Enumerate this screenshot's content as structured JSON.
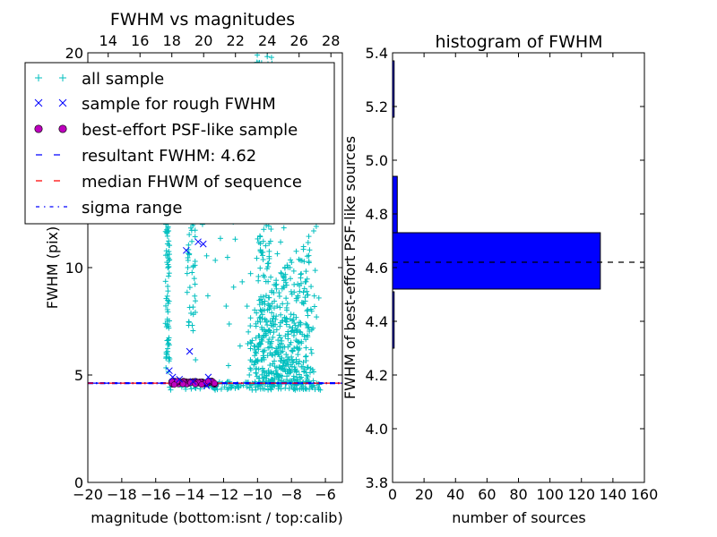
{
  "chart_data": [
    {
      "type": "scatter",
      "title": "FWHM vs magnitudes",
      "xlabel": "magnitude (bottom:isnt / top:calib)",
      "ylabel": "FWHM (pix)",
      "xlim": [
        -20,
        -5
      ],
      "ylim": [
        0,
        20
      ],
      "x_ticks": [
        -20,
        -18,
        -16,
        -14,
        -12,
        -10,
        -8,
        -6
      ],
      "x_tick_labels": [
        "−20",
        "−18",
        "−16",
        "−14",
        "−12",
        "−10",
        "−8",
        "−6"
      ],
      "y_ticks": [
        0,
        5,
        10,
        20
      ],
      "y_tick_labels": [
        "0",
        "5",
        "10",
        "20"
      ],
      "top_axis": {
        "xlim": [
          12.72,
          28.72
        ],
        "ticks": [
          14,
          16,
          18,
          20,
          22,
          24,
          26,
          28
        ],
        "tick_labels": [
          "14",
          "16",
          "18",
          "20",
          "22",
          "24",
          "26",
          "28"
        ]
      },
      "legend": {
        "placement": "upper-left",
        "entries": [
          {
            "label": "all sample",
            "marker": "+",
            "color": "#00bfbf"
          },
          {
            "label": "sample for rough FWHM",
            "marker": "x",
            "color": "#0000ff"
          },
          {
            "label": "best-effort PSF-like sample",
            "marker": "o",
            "color": "#bf00bf"
          },
          {
            "label": "resultant FWHM: 4.62",
            "marker": "dashed",
            "color": "#0000ff"
          },
          {
            "label": "median FHWM of sequence",
            "marker": "dashed",
            "color": "#ff0000"
          },
          {
            "label": "sigma range",
            "marker": "dashdot",
            "color": "#0000ff"
          }
        ]
      },
      "resultant_fwhm": 4.62,
      "sigma_range": [
        4.6,
        4.64
      ],
      "series": [
        {
          "name": "sample for rough FWHM",
          "x": [
            -14.2,
            -13.5,
            -13.2,
            -14.0,
            -15.2,
            -15.0,
            -14.6,
            -13.8,
            -13.0,
            -12.9
          ],
          "y": [
            10.8,
            11.2,
            11.1,
            6.1,
            5.2,
            4.9,
            4.8,
            4.7,
            4.5,
            4.9
          ]
        }
      ]
    },
    {
      "type": "bar",
      "orientation": "horizontal",
      "title": "histogram of FWHM",
      "xlabel": "number of sources",
      "ylabel": "FWHM of best-effort PSF-like sources",
      "xlim": [
        0,
        160
      ],
      "ylim": [
        3.8,
        5.4
      ],
      "x_ticks": [
        0,
        20,
        40,
        60,
        80,
        100,
        120,
        140,
        160
      ],
      "x_tick_labels": [
        "0",
        "20",
        "40",
        "60",
        "80",
        "100",
        "120",
        "140",
        "160"
      ],
      "y_ticks": [
        3.8,
        4.0,
        4.2,
        4.4,
        4.6,
        4.8,
        5.0,
        5.2,
        5.4
      ],
      "y_tick_labels": [
        "3.8",
        "4.0",
        "4.2",
        "4.4",
        "4.6",
        "4.8",
        "5.0",
        "5.2",
        "5.4"
      ],
      "bins": [
        {
          "low": 4.3,
          "high": 4.51,
          "count": 1
        },
        {
          "low": 4.52,
          "high": 4.73,
          "count": 132
        },
        {
          "low": 4.73,
          "high": 4.94,
          "count": 3
        },
        {
          "low": 5.16,
          "high": 5.37,
          "count": 1
        }
      ],
      "reference_line": 4.62,
      "color": "#0000ff"
    }
  ]
}
